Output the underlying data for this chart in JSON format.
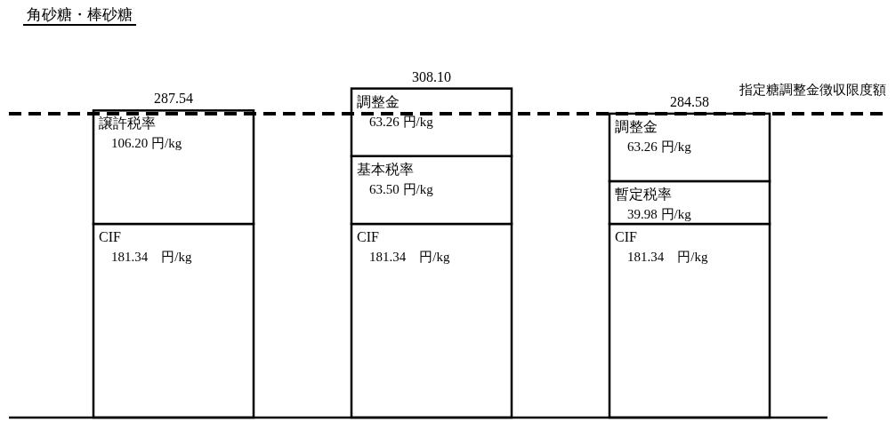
{
  "chart_data": {
    "type": "bar",
    "title": "角砂糖・棒砂糖",
    "stacked": true,
    "categories": [
      null,
      null,
      null
    ],
    "series": [
      {
        "name": "CIF",
        "color": "#ffffff",
        "values": [
          181.34,
          181.34,
          181.34
        ],
        "value_labels": [
          "181.34　円/kg",
          "181.34　円/kg",
          "181.34　円/kg"
        ]
      },
      {
        "name": "譲許税率",
        "color": "#ffffff",
        "values": [
          106.2,
          null,
          null
        ],
        "value_labels": [
          "106.20 円/kg",
          null,
          null
        ]
      },
      {
        "name": "基本税率",
        "color": "#ffffff",
        "values": [
          null,
          63.5,
          null
        ],
        "value_labels": [
          null,
          "63.50 円/kg",
          null
        ]
      },
      {
        "name": "暫定税率",
        "color": "#ffffff",
        "values": [
          null,
          null,
          39.98
        ],
        "value_labels": [
          null,
          null,
          "39.98 円/kg"
        ]
      },
      {
        "name": "調整金",
        "color": "#ffffff",
        "values": [
          null,
          63.26,
          63.26
        ],
        "value_labels": [
          null,
          "63.26 円/kg",
          "63.26 円/kg"
        ]
      }
    ],
    "totals": [
      "287.54",
      "308.10",
      "284.58"
    ],
    "ref_lines": [
      {
        "axis": "y",
        "value": 284.58,
        "label": "指定糖調整金徴収限度額",
        "color": "#000000",
        "line_style": "dashed"
      }
    ]
  }
}
